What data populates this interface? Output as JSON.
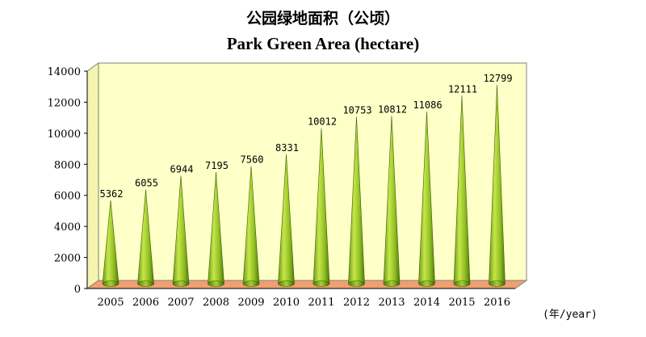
{
  "title_cn": "公园绿地面积（公顷）",
  "title_en": "Park Green Area (hectare)",
  "unit_label": "(年/year)",
  "colors": {
    "plot_bg": "#ffffc8",
    "cone_light": "#c6e64a",
    "cone_dark": "#4e7a0a",
    "floor": "#f0a070"
  },
  "chart_data": {
    "type": "bar",
    "title": "Park Green Area (hectare)",
    "categories": [
      "2005",
      "2006",
      "2007",
      "2008",
      "2009",
      "2010",
      "2011",
      "2012",
      "2013",
      "2014",
      "2015",
      "2016"
    ],
    "values": [
      5362,
      6055,
      6944,
      7195,
      7560,
      8331,
      10012,
      10753,
      10812,
      11086,
      12111,
      12799
    ],
    "xlabel": "(年/year)",
    "ylabel": "",
    "ylim": [
      0,
      14000
    ],
    "yticks": [
      0,
      2000,
      4000,
      6000,
      8000,
      10000,
      12000,
      14000
    ],
    "grid": false,
    "legend": "none"
  }
}
